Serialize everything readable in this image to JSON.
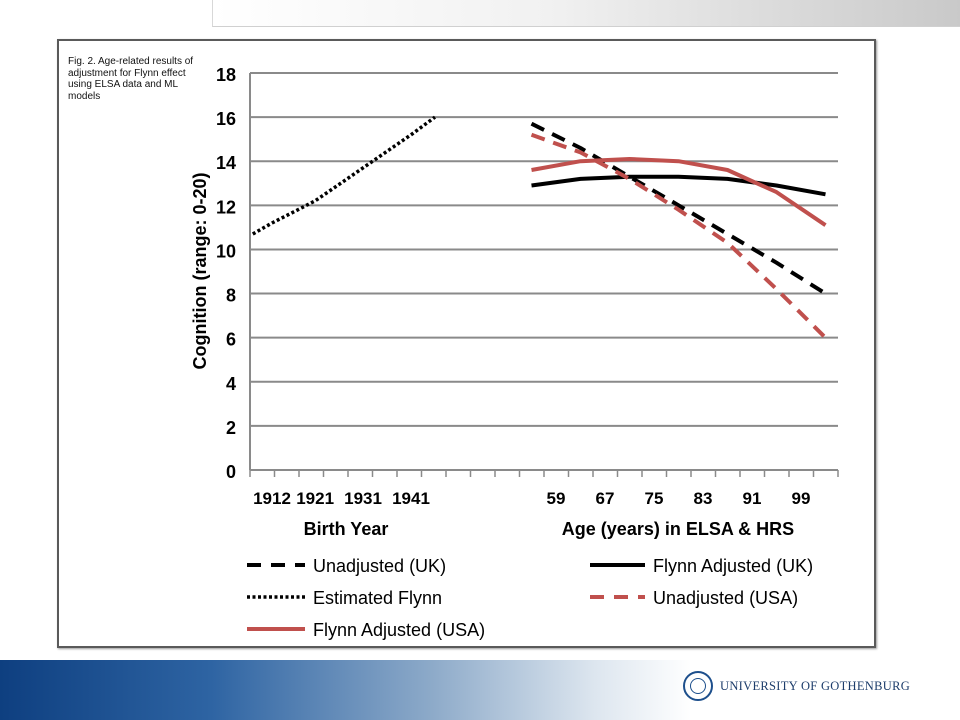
{
  "caption": "Fig. 2. Age-related results of adjustment for Flynn effect using ELSA data and ML models",
  "logo": {
    "text": "UNIVERSITY OF GOTHENBURG",
    "icon": "university-seal"
  },
  "colors": {
    "black": "#000000",
    "red": "#c0504d",
    "grid": "#8a8a8a"
  },
  "chart_data": {
    "type": "line",
    "ylabel": "Cognition (range: 0-20)",
    "ylim": [
      0,
      18
    ],
    "yticks": [
      0,
      2,
      4,
      6,
      8,
      10,
      12,
      14,
      16,
      18
    ],
    "grid": true,
    "x_axis_birth": {
      "label": "Birth Year",
      "ticks": [
        "1912",
        "1921",
        "1931",
        "1941"
      ]
    },
    "x_axis_age": {
      "label": "Age (years) in ELSA & HRS",
      "ticks": [
        "59",
        "67",
        "75",
        "83",
        "91",
        "99"
      ]
    },
    "series": [
      {
        "name": "Unadjusted (UK)",
        "axis": "age",
        "style": "dashed",
        "color": "#000000",
        "points": [
          [
            55,
            15.7
          ],
          [
            63,
            14.6
          ],
          [
            71,
            13.3
          ],
          [
            79,
            12.0
          ],
          [
            87,
            10.7
          ],
          [
            95,
            9.4
          ],
          [
            103,
            8.0
          ]
        ]
      },
      {
        "name": "Flynn Adjusted (UK)",
        "axis": "age",
        "style": "solid",
        "color": "#000000",
        "points": [
          [
            55,
            12.9
          ],
          [
            63,
            13.2
          ],
          [
            71,
            13.3
          ],
          [
            79,
            13.3
          ],
          [
            87,
            13.2
          ],
          [
            95,
            12.9
          ],
          [
            103,
            12.5
          ]
        ]
      },
      {
        "name": "Estimated Flynn",
        "axis": "birth",
        "style": "dotted",
        "color": "#000000",
        "points": [
          [
            1908,
            10.7
          ],
          [
            1912,
            11.2
          ],
          [
            1921,
            12.2
          ],
          [
            1931,
            13.7
          ],
          [
            1941,
            15.2
          ],
          [
            1946,
            16.0
          ]
        ]
      },
      {
        "name": "Unadjusted (USA)",
        "axis": "age",
        "style": "dashed",
        "color": "#c0504d",
        "points": [
          [
            55,
            15.2
          ],
          [
            63,
            14.4
          ],
          [
            71,
            13.2
          ],
          [
            79,
            11.8
          ],
          [
            87,
            10.3
          ],
          [
            95,
            8.2
          ],
          [
            103,
            6.0
          ]
        ]
      },
      {
        "name": "Flynn Adjusted (USA)",
        "axis": "age",
        "style": "solid",
        "color": "#c0504d",
        "points": [
          [
            55,
            13.6
          ],
          [
            63,
            14.0
          ],
          [
            71,
            14.1
          ],
          [
            79,
            14.0
          ],
          [
            87,
            13.6
          ],
          [
            95,
            12.6
          ],
          [
            103,
            11.1
          ]
        ]
      }
    ],
    "legend": {
      "position": "bottom",
      "items": [
        {
          "label": "Unadjusted (UK)",
          "style": "dashed",
          "color": "#000000"
        },
        {
          "label": "Flynn Adjusted (UK)",
          "style": "solid",
          "color": "#000000"
        },
        {
          "label": "Estimated Flynn",
          "style": "dotted",
          "color": "#000000"
        },
        {
          "label": "Unadjusted (USA)",
          "style": "dashed",
          "color": "#c0504d"
        },
        {
          "label": "Flynn Adjusted (USA)",
          "style": "solid",
          "color": "#c0504d"
        }
      ]
    }
  }
}
